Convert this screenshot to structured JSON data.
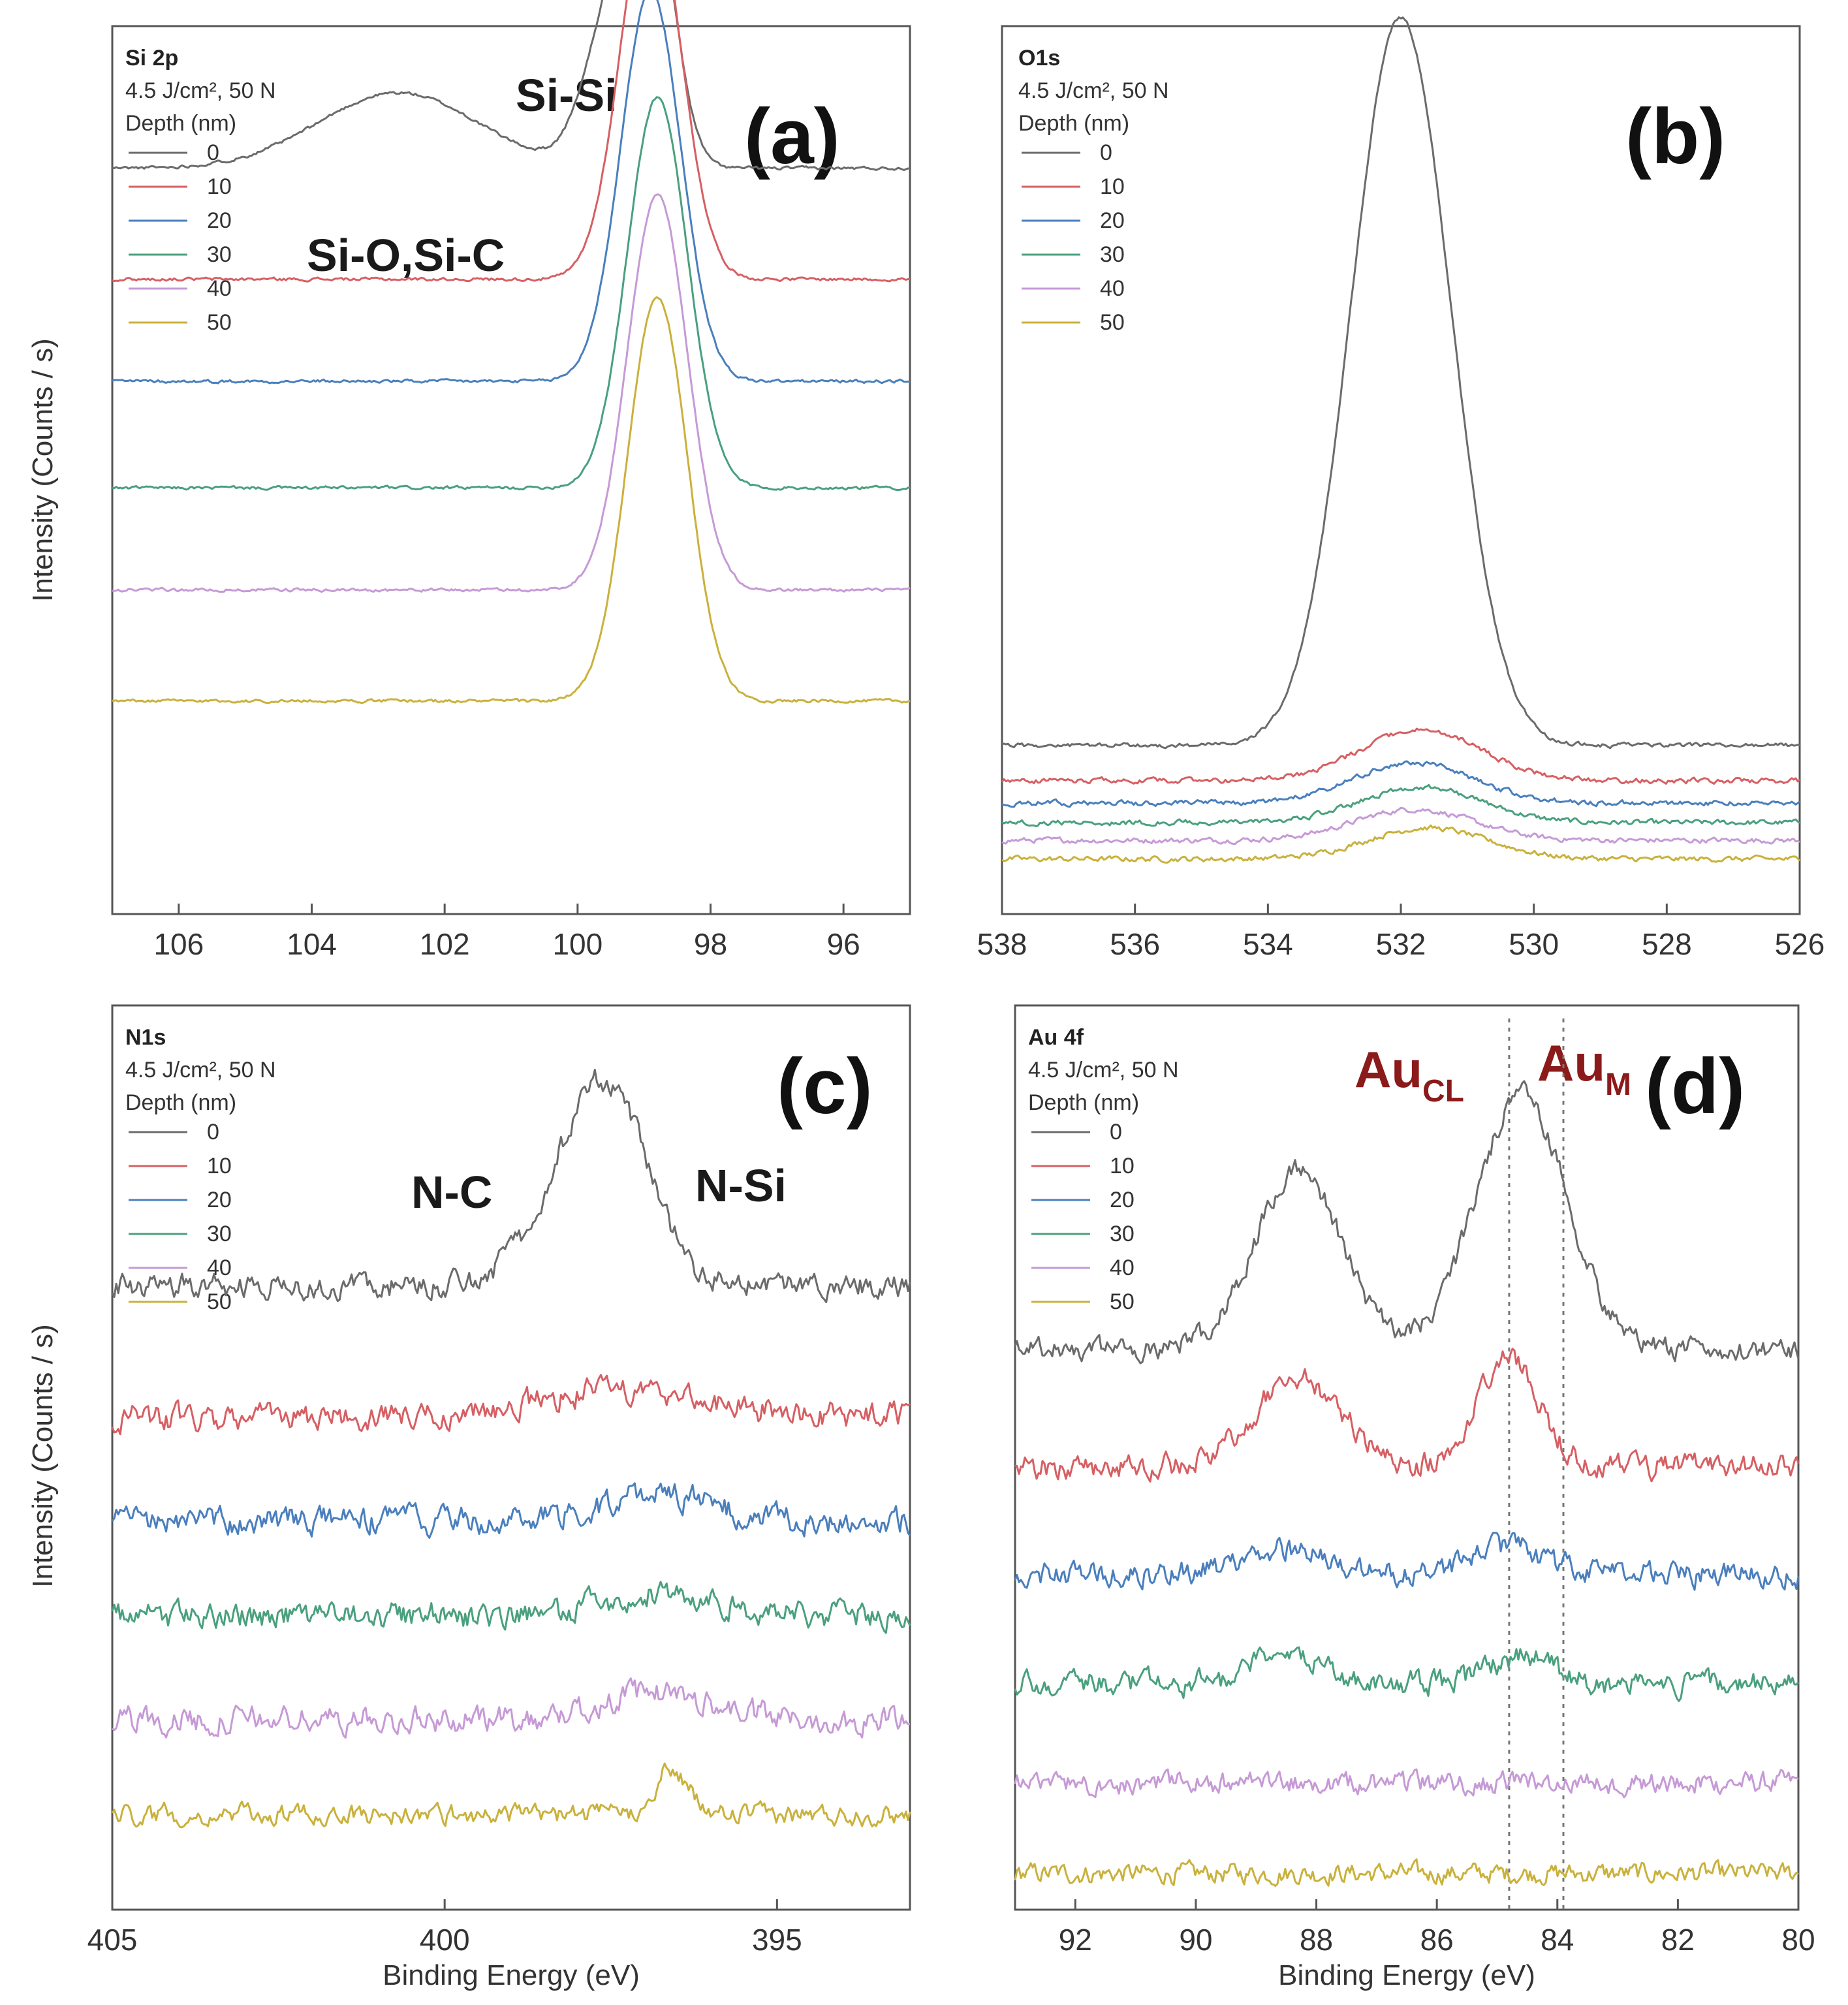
{
  "figure": {
    "ylabel": "Intensity (Counts / s)",
    "xlabel": "Binding Energy (eV)"
  },
  "colors": {
    "0": "#6b6b6b",
    "10": "#d65f63",
    "20": "#4a7fbd",
    "30": "#4aa07e",
    "40": "#c69ad6",
    "50": "#c9b13c"
  },
  "chart_data": [
    {
      "type": "line",
      "panel": "(a)",
      "title": "Si 2p",
      "condition": "4.5 J/cm², 50 N",
      "legend_title": "Depth (nm)",
      "legend": [
        "0",
        "10",
        "20",
        "30",
        "40",
        "50"
      ],
      "xlabel": "",
      "ylabel": "Intensity (Counts / s)",
      "xlim": [
        107,
        95
      ],
      "xticks": [
        "106",
        "104",
        "102",
        "100",
        "98",
        "96"
      ],
      "annotations": [
        "Si-Si",
        "Si-O,Si-C"
      ],
      "series": [
        {
          "name": "0",
          "baseline": 0.84,
          "peaks": [
            {
              "center": 98.9,
              "height": 0.3,
              "width": 0.35
            },
            {
              "center": 99.5,
              "height": 0.16,
              "width": 0.4
            },
            {
              "center": 102.7,
              "height": 0.085,
              "width": 1.2
            }
          ],
          "noise": 0.003
        },
        {
          "name": "10",
          "baseline": 0.715,
          "peaks": [
            {
              "center": 98.9,
              "height": 0.435,
              "width": 0.45
            }
          ],
          "noise": 0.003
        },
        {
          "name": "20",
          "baseline": 0.6,
          "peaks": [
            {
              "center": 98.9,
              "height": 0.44,
              "width": 0.45
            }
          ],
          "noise": 0.003
        },
        {
          "name": "30",
          "baseline": 0.48,
          "peaks": [
            {
              "center": 98.8,
              "height": 0.44,
              "width": 0.45
            }
          ],
          "noise": 0.003
        },
        {
          "name": "40",
          "baseline": 0.365,
          "peaks": [
            {
              "center": 98.8,
              "height": 0.445,
              "width": 0.45
            }
          ],
          "noise": 0.003
        },
        {
          "name": "50",
          "baseline": 0.24,
          "peaks": [
            {
              "center": 98.8,
              "height": 0.455,
              "width": 0.45
            }
          ],
          "noise": 0.003
        }
      ]
    },
    {
      "type": "line",
      "panel": "(b)",
      "title": "O1s",
      "condition": "4.5 J/cm², 50 N",
      "legend_title": "Depth (nm)",
      "legend": [
        "0",
        "10",
        "20",
        "30",
        "40",
        "50"
      ],
      "xlabel": "",
      "ylabel": "",
      "xlim": [
        538,
        526
      ],
      "xticks": [
        "538",
        "536",
        "534",
        "532",
        "530",
        "528",
        "526"
      ],
      "annotations": [],
      "series": [
        {
          "name": "0",
          "baseline": 0.19,
          "peaks": [
            {
              "center": 532.0,
              "height": 0.82,
              "width": 0.75
            }
          ],
          "noise": 0.004
        },
        {
          "name": "10",
          "baseline": 0.15,
          "peaks": [
            {
              "center": 531.7,
              "height": 0.058,
              "width": 0.9
            }
          ],
          "noise": 0.005
        },
        {
          "name": "20",
          "baseline": 0.125,
          "peaks": [
            {
              "center": 531.8,
              "height": 0.045,
              "width": 0.9
            }
          ],
          "noise": 0.005
        },
        {
          "name": "30",
          "baseline": 0.103,
          "peaks": [
            {
              "center": 531.7,
              "height": 0.04,
              "width": 0.9
            }
          ],
          "noise": 0.005
        },
        {
          "name": "40",
          "baseline": 0.083,
          "peaks": [
            {
              "center": 531.8,
              "height": 0.035,
              "width": 0.9
            }
          ],
          "noise": 0.005
        },
        {
          "name": "50",
          "baseline": 0.062,
          "peaks": [
            {
              "center": 531.6,
              "height": 0.035,
              "width": 0.9
            }
          ],
          "noise": 0.005
        }
      ]
    },
    {
      "type": "line",
      "panel": "(c)",
      "title": "N1s",
      "condition": "4.5 J/cm², 50 N",
      "legend_title": "Depth (nm)",
      "legend": [
        "0",
        "10",
        "20",
        "30",
        "40",
        "50"
      ],
      "xlabel": "Binding Energy (eV)",
      "ylabel": "Intensity (Counts / s)",
      "xlim": [
        405,
        393
      ],
      "xticks": [
        "405",
        "400",
        "395"
      ],
      "annotations": [
        "N-C",
        "N-Si"
      ],
      "series": [
        {
          "name": "0",
          "baseline": 0.69,
          "peaks": [
            {
              "center": 397.5,
              "height": 0.2,
              "width": 0.6
            },
            {
              "center": 398.3,
              "height": 0.06,
              "width": 0.6
            }
          ],
          "noise": 0.022
        },
        {
          "name": "10",
          "baseline": 0.545,
          "peaks": [
            {
              "center": 397.3,
              "height": 0.03,
              "width": 1.2
            }
          ],
          "noise": 0.024
        },
        {
          "name": "20",
          "baseline": 0.43,
          "peaks": [
            {
              "center": 396.8,
              "height": 0.03,
              "width": 0.8
            }
          ],
          "noise": 0.024
        },
        {
          "name": "30",
          "baseline": 0.325,
          "peaks": [
            {
              "center": 396.8,
              "height": 0.025,
              "width": 0.8
            }
          ],
          "noise": 0.024
        },
        {
          "name": "40",
          "baseline": 0.21,
          "peaks": [
            {
              "center": 396.8,
              "height": 0.03,
              "width": 0.8
            }
          ],
          "noise": 0.024
        },
        {
          "name": "50",
          "baseline": 0.105,
          "peaks": [
            {
              "center": 396.6,
              "height": 0.05,
              "width": 0.25
            }
          ],
          "noise": 0.018
        }
      ]
    },
    {
      "type": "line",
      "panel": "(d)",
      "title": "Au 4f",
      "condition": "4.5 J/cm², 50 N",
      "legend_title": "Depth (nm)",
      "legend": [
        "0",
        "10",
        "20",
        "30",
        "40",
        "50"
      ],
      "xlabel": "Binding Energy (eV)",
      "ylabel": "",
      "xlim": [
        93,
        80
      ],
      "xticks": [
        "92",
        "90",
        "88",
        "86",
        "84",
        "82",
        "80"
      ],
      "reference_lines": [
        84.8,
        83.9
      ],
      "annotations": [
        "Au",
        "CL",
        "Au",
        "M"
      ],
      "series": [
        {
          "name": "0",
          "baseline": 0.62,
          "peaks": [
            {
              "center": 88.3,
              "height": 0.2,
              "width": 0.7
            },
            {
              "center": 84.6,
              "height": 0.28,
              "width": 0.75
            }
          ],
          "noise": 0.02
        },
        {
          "name": "10",
          "baseline": 0.49,
          "peaks": [
            {
              "center": 88.3,
              "height": 0.1,
              "width": 0.7
            },
            {
              "center": 84.8,
              "height": 0.12,
              "width": 0.5
            }
          ],
          "noise": 0.022
        },
        {
          "name": "20",
          "baseline": 0.37,
          "peaks": [
            {
              "center": 88.6,
              "height": 0.03,
              "width": 0.7
            },
            {
              "center": 84.8,
              "height": 0.03,
              "width": 0.6
            }
          ],
          "noise": 0.022
        },
        {
          "name": "30",
          "baseline": 0.25,
          "peaks": [
            {
              "center": 88.5,
              "height": 0.04,
              "width": 0.5
            },
            {
              "center": 84.6,
              "height": 0.03,
              "width": 0.5
            }
          ],
          "noise": 0.022
        },
        {
          "name": "40",
          "baseline": 0.14,
          "peaks": [],
          "noise": 0.02
        },
        {
          "name": "50",
          "baseline": 0.04,
          "peaks": [],
          "noise": 0.018
        }
      ]
    }
  ]
}
